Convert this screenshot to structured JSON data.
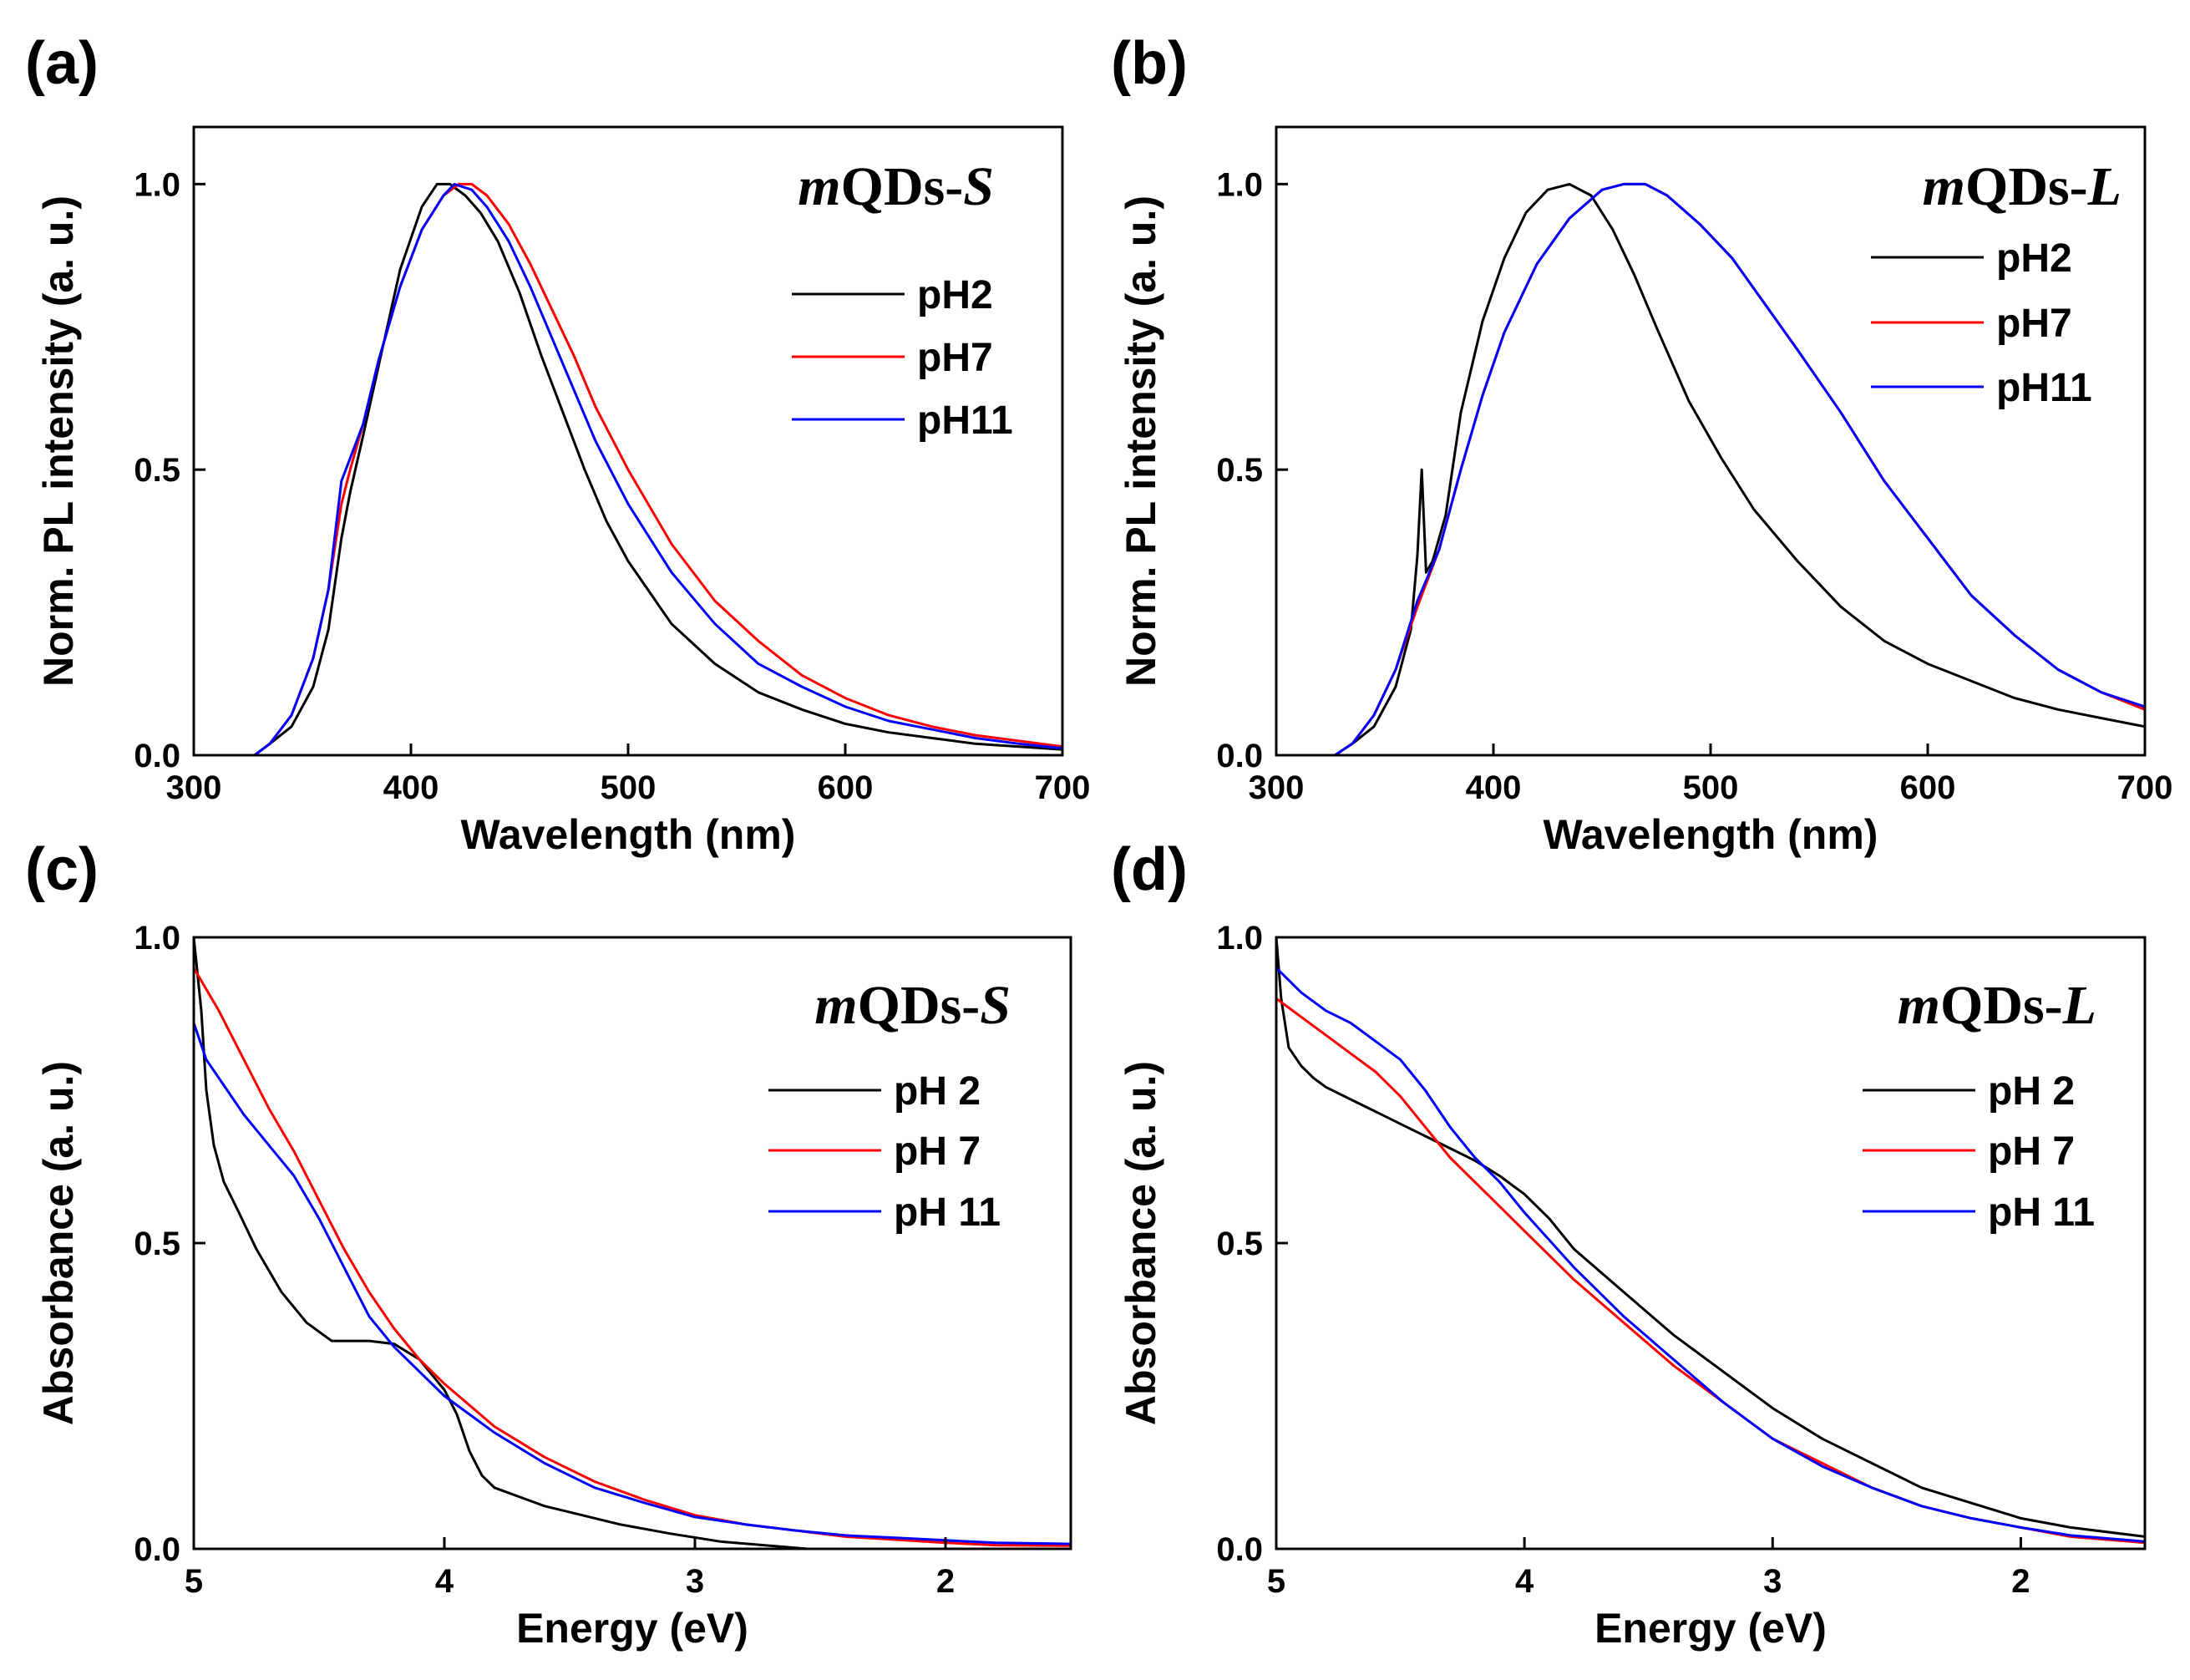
{
  "chart_data": [
    {
      "id": "a",
      "panel_label": "(a)",
      "type": "line",
      "title_prefix": "m",
      "title_middle": "QDs-",
      "title_suffix": "S",
      "xlabel": "Wavelength (nm)",
      "ylabel": "Norm. PL intensity (a. u.)",
      "xlim": [
        300,
        700
      ],
      "ylim": [
        0,
        1.1
      ],
      "x_reversed": false,
      "xticks": [
        300,
        400,
        500,
        600,
        700
      ],
      "xtick_labels": [
        "300",
        "400",
        "500",
        "600",
        "700"
      ],
      "yticks": [
        0,
        0.5,
        1.0
      ],
      "ytick_labels": [
        "0.0",
        "0.5",
        "1.0"
      ],
      "legend_position": "right",
      "series": [
        {
          "name": "pH2",
          "color": "#000000",
          "x": [
            300,
            328,
            335,
            345,
            355,
            362,
            368,
            372,
            378,
            385,
            395,
            405,
            412,
            418,
            425,
            432,
            440,
            450,
            460,
            470,
            480,
            490,
            500,
            520,
            540,
            560,
            580,
            600,
            620,
            640,
            660,
            680,
            700
          ],
          "y": [
            0,
            0,
            0.02,
            0.05,
            0.12,
            0.22,
            0.38,
            0.46,
            0.56,
            0.68,
            0.85,
            0.96,
            1.0,
            1.0,
            0.98,
            0.95,
            0.9,
            0.81,
            0.7,
            0.6,
            0.5,
            0.41,
            0.34,
            0.23,
            0.16,
            0.11,
            0.08,
            0.055,
            0.04,
            0.03,
            0.02,
            0.015,
            0.01
          ]
        },
        {
          "name": "pH7",
          "color": "#ff0000",
          "x": [
            300,
            328,
            335,
            345,
            355,
            362,
            368,
            372,
            378,
            385,
            395,
            405,
            415,
            422,
            428,
            435,
            445,
            455,
            465,
            475,
            485,
            500,
            520,
            540,
            560,
            580,
            600,
            620,
            640,
            660,
            680,
            700
          ],
          "y": [
            0,
            0,
            0.02,
            0.07,
            0.17,
            0.29,
            0.44,
            0.5,
            0.58,
            0.69,
            0.82,
            0.92,
            0.98,
            1.0,
            1.0,
            0.98,
            0.93,
            0.86,
            0.78,
            0.7,
            0.61,
            0.5,
            0.37,
            0.27,
            0.2,
            0.14,
            0.1,
            0.07,
            0.05,
            0.035,
            0.025,
            0.015
          ]
        },
        {
          "name": "pH11",
          "color": "#0000ff",
          "x": [
            300,
            328,
            335,
            345,
            355,
            362,
            368,
            372,
            378,
            385,
            395,
            405,
            415,
            420,
            428,
            435,
            445,
            455,
            465,
            475,
            485,
            500,
            520,
            540,
            560,
            580,
            600,
            620,
            640,
            660,
            680,
            700
          ],
          "y": [
            0,
            0,
            0.02,
            0.07,
            0.17,
            0.29,
            0.48,
            0.52,
            0.58,
            0.69,
            0.82,
            0.92,
            0.98,
            1.0,
            0.99,
            0.96,
            0.9,
            0.82,
            0.73,
            0.64,
            0.55,
            0.44,
            0.32,
            0.23,
            0.16,
            0.12,
            0.085,
            0.06,
            0.045,
            0.03,
            0.02,
            0.012
          ]
        }
      ]
    },
    {
      "id": "b",
      "panel_label": "(b)",
      "type": "line",
      "title_prefix": "m",
      "title_middle": "QDs-",
      "title_suffix": "L",
      "xlabel": "Wavelength (nm)",
      "ylabel": "Norm. PL intensity (a. u.)",
      "xlim": [
        300,
        700
      ],
      "ylim": [
        0,
        1.1
      ],
      "x_reversed": false,
      "xticks": [
        300,
        400,
        500,
        600,
        700
      ],
      "xtick_labels": [
        "300",
        "400",
        "500",
        "600",
        "700"
      ],
      "yticks": [
        0,
        0.5,
        1.0
      ],
      "ytick_labels": [
        "0.0",
        "0.5",
        "1.0"
      ],
      "legend_position": "right",
      "series": [
        {
          "name": "pH2",
          "color": "#000000",
          "x": [
            327,
            335,
            345,
            355,
            362,
            365,
            367,
            369,
            372,
            378,
            385,
            395,
            405,
            415,
            425,
            435,
            445,
            455,
            465,
            475,
            490,
            505,
            520,
            540,
            560,
            580,
            600,
            620,
            640,
            660,
            680,
            700
          ],
          "y": [
            0,
            0.02,
            0.05,
            0.12,
            0.22,
            0.35,
            0.5,
            0.32,
            0.34,
            0.42,
            0.6,
            0.76,
            0.87,
            0.95,
            0.99,
            1.0,
            0.98,
            0.92,
            0.84,
            0.75,
            0.62,
            0.52,
            0.43,
            0.34,
            0.26,
            0.2,
            0.16,
            0.13,
            0.1,
            0.08,
            0.065,
            0.05
          ]
        },
        {
          "name": "pH7",
          "color": "#ff0000",
          "x": [
            327,
            335,
            345,
            355,
            365,
            375,
            385,
            395,
            405,
            420,
            435,
            450,
            460,
            470,
            480,
            495,
            510,
            525,
            540,
            560,
            580,
            600,
            620,
            640,
            660,
            680,
            700
          ],
          "y": [
            0,
            0.02,
            0.07,
            0.15,
            0.26,
            0.36,
            0.5,
            0.63,
            0.74,
            0.86,
            0.94,
            0.99,
            1.0,
            1.0,
            0.98,
            0.93,
            0.87,
            0.79,
            0.71,
            0.6,
            0.48,
            0.38,
            0.28,
            0.21,
            0.15,
            0.11,
            0.08
          ]
        },
        {
          "name": "pH11",
          "color": "#0000ff",
          "x": [
            327,
            335,
            345,
            355,
            365,
            375,
            385,
            395,
            405,
            420,
            435,
            450,
            460,
            470,
            480,
            495,
            510,
            525,
            540,
            560,
            580,
            600,
            620,
            640,
            660,
            680,
            700
          ],
          "y": [
            0,
            0.02,
            0.07,
            0.15,
            0.27,
            0.36,
            0.5,
            0.63,
            0.74,
            0.86,
            0.94,
            0.99,
            1.0,
            1.0,
            0.98,
            0.93,
            0.87,
            0.79,
            0.71,
            0.6,
            0.48,
            0.38,
            0.28,
            0.21,
            0.15,
            0.11,
            0.085
          ]
        }
      ]
    },
    {
      "id": "c",
      "panel_label": "(c)",
      "type": "line",
      "title_prefix": "m",
      "title_middle": "QDs-",
      "title_suffix": "S",
      "xlabel": "Energy (eV)",
      "ylabel": "Absorbance (a. u.)",
      "xlim": [
        5,
        1.5
      ],
      "ylim": [
        0,
        1.0
      ],
      "x_reversed": true,
      "xticks": [
        5,
        4,
        3,
        2
      ],
      "xtick_labels": [
        "5",
        "4",
        "3",
        "2"
      ],
      "yticks": [
        0,
        0.5,
        1.0
      ],
      "ytick_labels": [
        "0.0",
        "0.5",
        "1.0"
      ],
      "legend_position": "right",
      "series": [
        {
          "name": "pH 2",
          "color": "#000000",
          "x": [
            5.0,
            4.97,
            4.95,
            4.92,
            4.88,
            4.82,
            4.75,
            4.65,
            4.55,
            4.45,
            4.38,
            4.3,
            4.2,
            4.1,
            4.0,
            3.95,
            3.9,
            3.85,
            3.8,
            3.7,
            3.6,
            3.5,
            3.3,
            3.1,
            2.9,
            2.7,
            2.55
          ],
          "y": [
            1.0,
            0.88,
            0.75,
            0.66,
            0.6,
            0.55,
            0.49,
            0.42,
            0.37,
            0.34,
            0.34,
            0.34,
            0.335,
            0.31,
            0.26,
            0.22,
            0.16,
            0.12,
            0.1,
            0.085,
            0.07,
            0.06,
            0.04,
            0.025,
            0.012,
            0.005,
            0.0
          ]
        },
        {
          "name": "pH 7",
          "color": "#ff0000",
          "x": [
            5.0,
            4.9,
            4.8,
            4.7,
            4.6,
            4.5,
            4.4,
            4.3,
            4.2,
            4.1,
            4.0,
            3.8,
            3.6,
            3.4,
            3.2,
            3.0,
            2.8,
            2.6,
            2.4,
            2.2,
            2.0,
            1.8,
            1.5
          ],
          "y": [
            0.95,
            0.88,
            0.8,
            0.72,
            0.65,
            0.57,
            0.49,
            0.42,
            0.36,
            0.31,
            0.27,
            0.2,
            0.15,
            0.11,
            0.08,
            0.055,
            0.04,
            0.03,
            0.02,
            0.015,
            0.01,
            0.006,
            0.005
          ]
        },
        {
          "name": "pH 11",
          "color": "#0000ff",
          "x": [
            5.0,
            4.95,
            4.9,
            4.8,
            4.7,
            4.6,
            4.5,
            4.4,
            4.3,
            4.2,
            4.1,
            4.0,
            3.8,
            3.6,
            3.4,
            3.2,
            3.0,
            2.8,
            2.6,
            2.4,
            2.2,
            2.0,
            1.8,
            1.5
          ],
          "y": [
            0.86,
            0.8,
            0.77,
            0.71,
            0.66,
            0.61,
            0.54,
            0.46,
            0.38,
            0.33,
            0.29,
            0.25,
            0.19,
            0.14,
            0.1,
            0.075,
            0.052,
            0.04,
            0.03,
            0.022,
            0.018,
            0.014,
            0.01,
            0.008
          ]
        }
      ]
    },
    {
      "id": "d",
      "panel_label": "(d)",
      "type": "line",
      "title_prefix": "m",
      "title_middle": "QDs-",
      "title_suffix": "L",
      "xlabel": "Energy (eV)",
      "ylabel": "Absorbance (a. u.)",
      "xlim": [
        5,
        1.5
      ],
      "ylim": [
        0,
        1.0
      ],
      "x_reversed": true,
      "xticks": [
        5,
        4,
        3,
        2
      ],
      "xtick_labels": [
        "5",
        "4",
        "3",
        "2"
      ],
      "yticks": [
        0,
        0.5,
        1.0
      ],
      "ytick_labels": [
        "0.0",
        "0.5",
        "1.0"
      ],
      "legend_position": "right",
      "series": [
        {
          "name": "pH 2",
          "color": "#000000",
          "x": [
            5.0,
            4.98,
            4.95,
            4.9,
            4.85,
            4.8,
            4.7,
            4.6,
            4.5,
            4.4,
            4.3,
            4.2,
            4.1,
            4.0,
            3.9,
            3.8,
            3.6,
            3.4,
            3.2,
            3.0,
            2.8,
            2.6,
            2.4,
            2.2,
            2.0,
            1.8,
            1.5
          ],
          "y": [
            1.0,
            0.9,
            0.82,
            0.79,
            0.77,
            0.755,
            0.735,
            0.715,
            0.695,
            0.675,
            0.655,
            0.635,
            0.61,
            0.58,
            0.54,
            0.49,
            0.42,
            0.35,
            0.29,
            0.23,
            0.18,
            0.14,
            0.1,
            0.075,
            0.05,
            0.035,
            0.02
          ]
        },
        {
          "name": "pH 7",
          "color": "#ff0000",
          "x": [
            5.0,
            4.9,
            4.8,
            4.7,
            4.6,
            4.5,
            4.4,
            4.3,
            4.2,
            4.1,
            4.0,
            3.8,
            3.6,
            3.4,
            3.2,
            3.0,
            2.8,
            2.6,
            2.4,
            2.2,
            2.0,
            1.8,
            1.5
          ],
          "y": [
            0.9,
            0.87,
            0.84,
            0.81,
            0.78,
            0.74,
            0.69,
            0.64,
            0.6,
            0.56,
            0.52,
            0.44,
            0.37,
            0.3,
            0.24,
            0.18,
            0.14,
            0.1,
            0.07,
            0.05,
            0.035,
            0.02,
            0.01
          ]
        },
        {
          "name": "pH 11",
          "color": "#0000ff",
          "x": [
            5.0,
            4.95,
            4.9,
            4.8,
            4.7,
            4.6,
            4.5,
            4.4,
            4.3,
            4.2,
            4.1,
            4.0,
            3.8,
            3.6,
            3.4,
            3.2,
            3.0,
            2.8,
            2.6,
            2.4,
            2.2,
            2.0,
            1.8,
            1.5
          ],
          "y": [
            0.95,
            0.93,
            0.91,
            0.88,
            0.86,
            0.83,
            0.8,
            0.75,
            0.69,
            0.64,
            0.6,
            0.55,
            0.46,
            0.38,
            0.31,
            0.24,
            0.18,
            0.135,
            0.1,
            0.07,
            0.05,
            0.035,
            0.022,
            0.012
          ]
        }
      ]
    }
  ]
}
